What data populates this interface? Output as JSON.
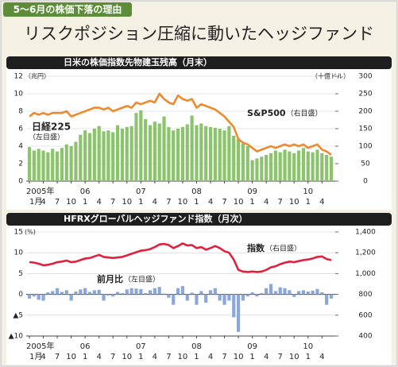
{
  "header": {
    "tag": "5～6月の株価下落の理由",
    "title": "リスクポジション圧縮に動いたヘッジファンド"
  },
  "chart_data": [
    {
      "type": "bar_line",
      "title": "日米の株価指数先物建玉残高（月末）",
      "y_unit": "（兆円）",
      "y2_unit": "（十億ドル）",
      "categories": [
        "1月",
        null,
        null,
        "4",
        null,
        null,
        "7",
        null,
        null,
        "10",
        null,
        null,
        "1",
        null,
        null,
        "4",
        null,
        null,
        "7",
        null,
        null,
        "10",
        null,
        null,
        "1",
        null,
        null,
        "4",
        null,
        null,
        "7",
        null,
        null,
        "10",
        null,
        null,
        "1",
        null,
        null,
        "4",
        null,
        null,
        "7",
        null,
        null,
        "10",
        null,
        null,
        "1",
        null,
        null,
        "4",
        null,
        null,
        "7",
        null,
        null,
        "10",
        null,
        null,
        "1",
        null,
        null,
        "4",
        null,
        null
      ],
      "years": [
        "2005年",
        "06",
        "07",
        "08",
        "09",
        "10"
      ],
      "ylim": [
        0,
        12
      ],
      "yticks": [
        0,
        2,
        4,
        6,
        8,
        10,
        12
      ],
      "y2lim": [
        0,
        300
      ],
      "y2ticks": [
        0,
        50,
        100,
        150,
        200,
        250,
        300
      ],
      "grid": true,
      "series": [
        {
          "name": "日経225",
          "scale_label": "（左目盛）",
          "type": "bar",
          "color": "#8cc46e",
          "values": [
            3.9,
            3.5,
            3.7,
            3.5,
            3.3,
            3.7,
            3.4,
            3.8,
            4.2,
            4.0,
            4.5,
            5.3,
            5.8,
            5.5,
            6.0,
            6.3,
            5.7,
            5.8,
            5.6,
            6.4,
            6.0,
            6.2,
            6.3,
            7.8,
            8.1,
            7.1,
            6.4,
            6.8,
            6.6,
            7.4,
            6.2,
            5.8,
            6.0,
            6.2,
            6.5,
            7.5,
            6.4,
            6.6,
            6.3,
            6.2,
            6.1,
            6.0,
            5.8,
            6.3,
            5.2,
            4.8,
            4.3,
            4.0,
            2.4,
            2.6,
            2.8,
            3.0,
            3.2,
            3.5,
            3.3,
            3.6,
            3.4,
            3.2,
            3.5,
            3.8,
            3.4,
            3.3,
            3.6,
            3.2,
            3.0,
            2.8
          ]
        },
        {
          "name": "S&P500",
          "scale_label": "（右目盛）",
          "type": "line",
          "axis": "y2",
          "color": "#ee8a2e",
          "values": [
            185,
            195,
            190,
            195,
            190,
            195,
            195,
            195,
            200,
            185,
            190,
            195,
            200,
            205,
            210,
            210,
            205,
            210,
            200,
            205,
            210,
            215,
            210,
            225,
            220,
            225,
            230,
            225,
            250,
            235,
            225,
            220,
            245,
            235,
            230,
            235,
            210,
            220,
            215,
            210,
            205,
            195,
            185,
            170,
            155,
            120,
            110,
            105,
            95,
            85,
            90,
            95,
            100,
            95,
            100,
            105,
            100,
            105,
            100,
            105,
            95,
            100,
            105,
            90,
            85,
            75
          ]
        }
      ]
    },
    {
      "type": "bar_line",
      "title": "HFRXグローバルヘッジファンド指数（月次）",
      "y_unit": "(%)",
      "categories": [
        "1月",
        null,
        null,
        "4",
        null,
        null,
        "7",
        null,
        null,
        "10",
        null,
        null,
        "1",
        null,
        null,
        "4",
        null,
        null,
        "7",
        null,
        null,
        "10",
        null,
        null,
        "1",
        null,
        null,
        "4",
        null,
        null,
        "7",
        null,
        null,
        "10",
        null,
        null,
        "1",
        null,
        null,
        "4",
        null,
        null,
        "7",
        null,
        null,
        "10",
        null,
        null,
        "1",
        null,
        null,
        "4",
        null,
        null,
        "7",
        null,
        null,
        "10",
        null,
        null,
        "1",
        null,
        null,
        "4",
        null,
        null
      ],
      "years": [
        "2005年",
        "06",
        "07",
        "08",
        "09",
        "10"
      ],
      "ylim": [
        -10,
        15
      ],
      "yticks": [
        {
          "value": -10,
          "label": "▲10"
        },
        {
          "value": -5,
          "label": "▲5"
        },
        0,
        5,
        10,
        15
      ],
      "y2lim": [
        400,
        1400
      ],
      "y2ticks": [
        400,
        600,
        800,
        {
          "value": 1000,
          "label": "1,000"
        },
        {
          "value": 1200,
          "label": "1,200"
        },
        {
          "value": 1400,
          "label": "1,400"
        }
      ],
      "grid": true,
      "series": [
        {
          "name": "前月比",
          "scale_label": "（左目盛）",
          "type": "bar",
          "color": "#8ba6d8",
          "values": [
            -1.0,
            -0.5,
            -1.3,
            -1.5,
            0.5,
            0.8,
            1.5,
            0.6,
            1.0,
            -1.5,
            0.7,
            1.2,
            1.5,
            0.6,
            1.0,
            1.1,
            -1.5,
            -0.3,
            -0.5,
            0.6,
            0.3,
            1.2,
            1.5,
            1.4,
            1.3,
            0.3,
            1.0,
            1.5,
            1.8,
            0.2,
            -0.8,
            -2.5,
            1.5,
            2.0,
            -1.5,
            0.4,
            -2.5,
            0.8,
            -2.0,
            1.0,
            1.5,
            -1.5,
            -2.5,
            -1.5,
            -5.5,
            -9.0,
            -1.5,
            -0.5,
            0.5,
            -0.5,
            0.3,
            1.5,
            2.5,
            0.8,
            1.7,
            1.5,
            1.0,
            -0.6,
            0.8,
            1.0,
            0.7,
            0.9,
            1.3,
            0.5,
            -2.5,
            -1.0
          ]
        },
        {
          "name": "指数",
          "scale_label": "（右目盛）",
          "type": "line",
          "axis": "y2",
          "color": "#e0203c",
          "values": [
            1110,
            1105,
            1095,
            1080,
            1085,
            1095,
            1110,
            1115,
            1125,
            1110,
            1115,
            1130,
            1145,
            1150,
            1165,
            1180,
            1160,
            1155,
            1150,
            1155,
            1160,
            1175,
            1190,
            1205,
            1220,
            1225,
            1235,
            1255,
            1280,
            1285,
            1275,
            1245,
            1265,
            1290,
            1270,
            1275,
            1245,
            1255,
            1230,
            1245,
            1265,
            1245,
            1215,
            1200,
            1135,
            1035,
            1020,
            1015,
            1020,
            1015,
            1020,
            1035,
            1060,
            1070,
            1090,
            1105,
            1115,
            1110,
            1120,
            1130,
            1135,
            1145,
            1160,
            1165,
            1140,
            1130
          ]
        }
      ]
    }
  ]
}
